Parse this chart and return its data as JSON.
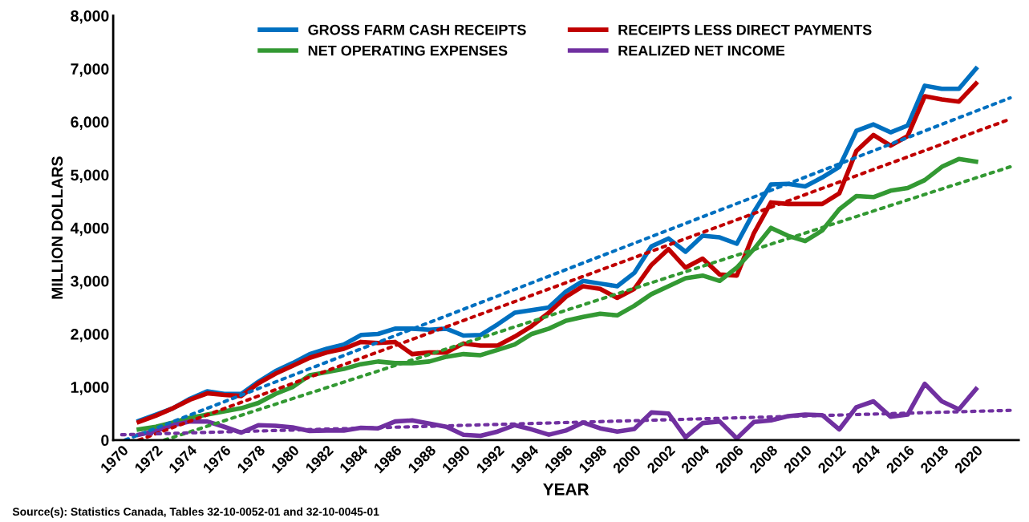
{
  "chart_data": {
    "type": "line",
    "xlabel": "YEAR",
    "ylabel": "MILLION DOLLARS",
    "x": [
      1971,
      1972,
      1973,
      1974,
      1975,
      1976,
      1977,
      1978,
      1979,
      1980,
      1981,
      1982,
      1983,
      1984,
      1985,
      1986,
      1987,
      1988,
      1989,
      1990,
      1991,
      1992,
      1993,
      1994,
      1995,
      1996,
      1997,
      1998,
      1999,
      2000,
      2001,
      2002,
      2003,
      2004,
      2005,
      2006,
      2007,
      2008,
      2009,
      2010,
      2011,
      2012,
      2013,
      2014,
      2015,
      2016,
      2017,
      2018,
      2019,
      2020
    ],
    "series": [
      {
        "name": "GROSS FARM CASH RECEIPTS",
        "color": "#0070c0",
        "values": [
          360,
          480,
          600,
          780,
          920,
          870,
          870,
          1100,
          1300,
          1450,
          1620,
          1720,
          1800,
          1980,
          2000,
          2100,
          2100,
          2080,
          2100,
          1970,
          1980,
          2180,
          2400,
          2450,
          2500,
          2800,
          3000,
          2950,
          2900,
          3150,
          3650,
          3800,
          3550,
          3850,
          3820,
          3700,
          4300,
          4820,
          4830,
          4780,
          4950,
          5150,
          5830,
          5950,
          5800,
          5930,
          6680,
          6620,
          6620,
          7000
        ]
      },
      {
        "name": "RECEIPTS LESS DIRECT PAYMENTS",
        "color": "#c00000",
        "values": [
          340,
          460,
          600,
          760,
          880,
          850,
          830,
          1070,
          1250,
          1400,
          1550,
          1650,
          1720,
          1850,
          1830,
          1850,
          1620,
          1650,
          1650,
          1820,
          1780,
          1780,
          1950,
          2150,
          2400,
          2700,
          2900,
          2850,
          2680,
          2850,
          3300,
          3600,
          3250,
          3420,
          3120,
          3100,
          3900,
          4480,
          4450,
          4450,
          4450,
          4650,
          5450,
          5750,
          5550,
          5730,
          6480,
          6420,
          6380,
          6720
        ]
      },
      {
        "name": "NET OPERATING EXPENSES",
        "color": "#339933",
        "values": [
          200,
          250,
          330,
          420,
          480,
          540,
          600,
          700,
          870,
          1000,
          1220,
          1280,
          1340,
          1430,
          1480,
          1450,
          1450,
          1480,
          1570,
          1620,
          1600,
          1700,
          1800,
          2000,
          2100,
          2250,
          2320,
          2380,
          2350,
          2530,
          2750,
          2900,
          3050,
          3100,
          3000,
          3250,
          3600,
          4000,
          3850,
          3750,
          3950,
          4350,
          4600,
          4580,
          4700,
          4750,
          4900,
          5150,
          5300,
          5250
        ]
      },
      {
        "name": "REALIZED NET INCOME",
        "color": "#7030a0",
        "values": [
          100,
          170,
          280,
          350,
          350,
          250,
          140,
          280,
          270,
          240,
          170,
          180,
          180,
          230,
          220,
          350,
          370,
          310,
          250,
          100,
          80,
          160,
          280,
          200,
          100,
          180,
          330,
          220,
          160,
          210,
          520,
          500,
          50,
          320,
          350,
          30,
          340,
          370,
          450,
          480,
          470,
          200,
          620,
          730,
          440,
          480,
          1060,
          730,
          580,
          960
        ]
      },
      {
        "color": "#0070c0",
        "line_style": "dotted",
        "x": [
          1970.2,
          2022
        ],
        "values": [
          0,
          6450
        ]
      },
      {
        "color": "#c00000",
        "line_style": "dotted",
        "x": [
          1971,
          2022
        ],
        "values": [
          0,
          6050
        ]
      },
      {
        "color": "#339933",
        "line_style": "dotted",
        "x": [
          1972.5,
          2022
        ],
        "values": [
          0,
          5150
        ]
      },
      {
        "color": "#7030a0",
        "line_style": "dotted",
        "x": [
          1970,
          2022
        ],
        "values": [
          100,
          560
        ]
      }
    ],
    "xlim": [
      1969.5,
      2022.5
    ],
    "xticks": [
      1970,
      1972,
      1974,
      1976,
      1978,
      1980,
      1982,
      1984,
      1986,
      1988,
      1990,
      1992,
      1994,
      1996,
      1998,
      2000,
      2002,
      2004,
      2006,
      2008,
      2010,
      2012,
      2014,
      2016,
      2018,
      2020
    ],
    "ylim": [
      0,
      8000
    ],
    "yticks": [
      0,
      {
        "value": 1000,
        "label": "1,000"
      },
      {
        "value": 2000,
        "label": "2,000"
      },
      {
        "value": 3000,
        "label": "3,000"
      },
      {
        "value": 4000,
        "label": "4,000"
      },
      {
        "value": 5000,
        "label": "5,000"
      },
      {
        "value": 6000,
        "label": "6,000"
      },
      {
        "value": 7000,
        "label": "7,000"
      },
      {
        "value": 8000,
        "label": "8,000"
      }
    ],
    "grid": false,
    "legend": "top",
    "line_style": "solid",
    "annotations": [
      "Source(s): Statistics Canada, Tables 32-10-0052-01 and 32-10-0045-01"
    ]
  }
}
